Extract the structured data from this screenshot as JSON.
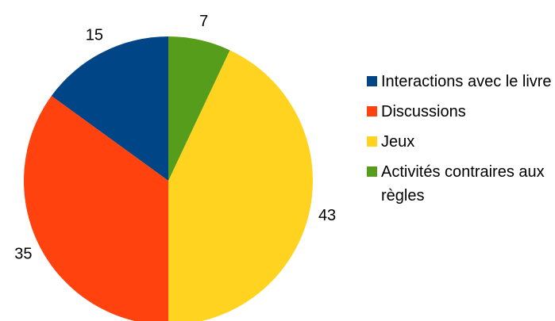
{
  "chart_data": {
    "type": "pie",
    "categories": [
      "Interactions avec le livre",
      "Discussions",
      "Jeux",
      "Activités contraires aux règles"
    ],
    "values": [
      15,
      35,
      43,
      7
    ],
    "colors": [
      "#004586",
      "#ff420e",
      "#ffd320",
      "#579d1c"
    ],
    "legend": "right"
  }
}
